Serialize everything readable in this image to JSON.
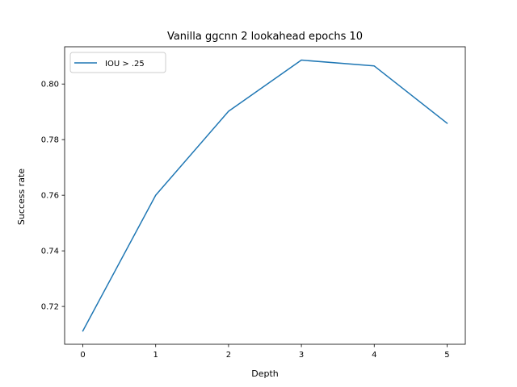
{
  "chart_data": {
    "type": "line",
    "title": "Vanilla ggcnn 2 lookahead epochs 10",
    "xlabel": "Depth",
    "ylabel": "Success rate",
    "x": [
      0,
      1,
      2,
      3,
      4,
      5
    ],
    "series": [
      {
        "name": "IOU > .25",
        "values": [
          0.7112,
          0.76,
          0.7902,
          0.8086,
          0.8065,
          0.7859
        ],
        "color": "#1f77b4"
      }
    ],
    "xlim": [
      -0.25,
      5.25
    ],
    "ylim": [
      0.7064,
      0.8134
    ],
    "xticks": [
      0,
      1,
      2,
      3,
      4,
      5
    ],
    "xtick_labels": [
      "0",
      "1",
      "2",
      "3",
      "4",
      "5"
    ],
    "yticks": [
      0.72,
      0.74,
      0.76,
      0.78,
      0.8
    ],
    "ytick_labels": [
      "0.72",
      "0.74",
      "0.76",
      "0.78",
      "0.80"
    ],
    "legend_position": "top-left",
    "grid": false
  }
}
